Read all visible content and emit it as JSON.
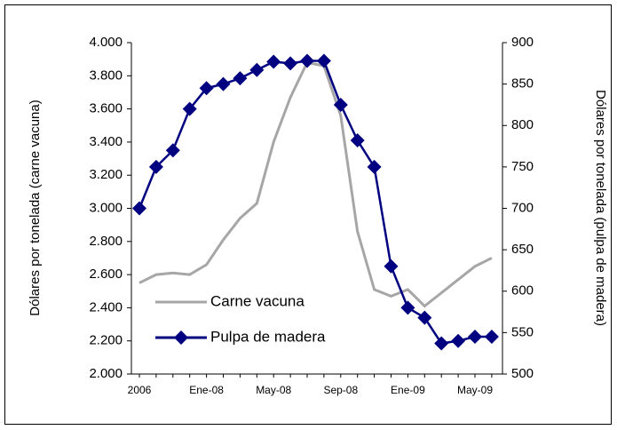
{
  "chart_data": {
    "type": "line",
    "categories": [
      "2006",
      null,
      null,
      null,
      "Ene-08",
      null,
      null,
      null,
      "May-08",
      null,
      null,
      null,
      "Sep-08",
      null,
      null,
      null,
      "Ene-09",
      null,
      null,
      null,
      "May-09",
      null
    ],
    "y_label": "Dólares por tonelada (carne vacuna)",
    "y2_label": "Dólares por tonelada (pulpa de madera)",
    "ylim": [
      2000,
      4000
    ],
    "yticks": [
      {
        "value": 2000,
        "label": "2.000"
      },
      {
        "value": 2200,
        "label": "2.200"
      },
      {
        "value": 2400,
        "label": "2.400"
      },
      {
        "value": 2600,
        "label": "2.600"
      },
      {
        "value": 2800,
        "label": "2.800"
      },
      {
        "value": 3000,
        "label": "3.000"
      },
      {
        "value": 3200,
        "label": "3.200"
      },
      {
        "value": 3400,
        "label": "3.400"
      },
      {
        "value": 3600,
        "label": "3.600"
      },
      {
        "value": 3800,
        "label": "3.800"
      },
      {
        "value": 4000,
        "label": "4.000"
      }
    ],
    "y2lim": [
      500,
      900
    ],
    "y2ticks": [
      500,
      550,
      600,
      650,
      700,
      750,
      800,
      850,
      900
    ],
    "legend": "lower-left",
    "grid": false,
    "series": [
      {
        "name": "Carne vacuna",
        "color": "#a6a6a6",
        "axis": "y",
        "marker": false,
        "values": [
          2550,
          2600,
          2610,
          2600,
          2660,
          2810,
          2940,
          3030,
          3400,
          3670,
          3880,
          3860,
          3560,
          2860,
          2510,
          2470,
          2510,
          2410,
          2490,
          2570,
          2650,
          2700
        ]
      },
      {
        "name": "Pulpa de madera",
        "color": "#000080",
        "axis": "y2",
        "marker": true,
        "values": [
          700,
          750,
          770,
          820,
          845,
          850,
          857,
          867,
          877,
          875,
          878,
          878,
          825,
          782,
          750,
          630,
          580,
          568,
          537,
          540,
          545,
          545
        ]
      }
    ]
  }
}
